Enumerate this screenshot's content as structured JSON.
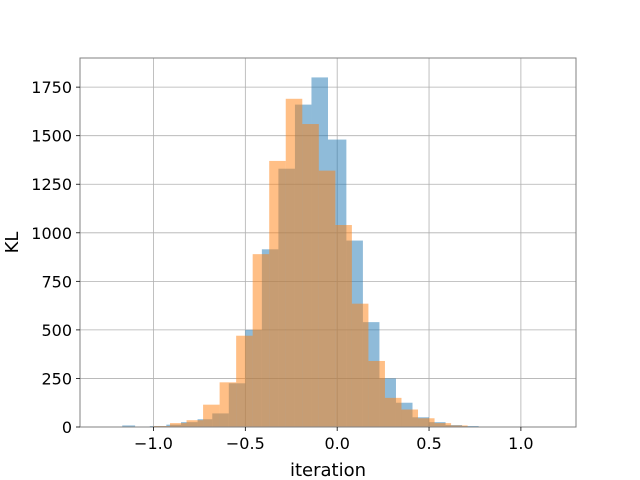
{
  "chart_data": {
    "type": "bar",
    "title": "",
    "xlabel": "iteration",
    "ylabel": "KL",
    "xlim": [
      -1.4,
      1.3
    ],
    "ylim": [
      0,
      1900
    ],
    "grid": true,
    "legend": "none",
    "xticks": [
      -1.0,
      -0.5,
      0.0,
      0.5,
      1.0
    ],
    "xtick_labels": [
      "−1.0",
      "−0.5",
      "0.0",
      "0.5",
      "1.0"
    ],
    "yticks": [
      0,
      250,
      500,
      750,
      1000,
      1250,
      1500,
      1750
    ],
    "ytick_labels": [
      "0",
      "250",
      "500",
      "750",
      "1000",
      "1250",
      "1500",
      "1750"
    ],
    "series": [
      {
        "color": "#1f77b4",
        "opacity": 0.5,
        "bins": [
          {
            "x0": -1.17,
            "x1": -1.1,
            "value": 8
          },
          {
            "x0": -1.1,
            "x1": -1.02,
            "value": 2
          },
          {
            "x0": -1.02,
            "x1": -0.93,
            "value": 5
          },
          {
            "x0": -0.93,
            "x1": -0.85,
            "value": 12
          },
          {
            "x0": -0.85,
            "x1": -0.76,
            "value": 25
          },
          {
            "x0": -0.76,
            "x1": -0.68,
            "value": 40
          },
          {
            "x0": -0.68,
            "x1": -0.59,
            "value": 70
          },
          {
            "x0": -0.59,
            "x1": -0.5,
            "value": 225
          },
          {
            "x0": -0.5,
            "x1": -0.41,
            "value": 500
          },
          {
            "x0": -0.41,
            "x1": -0.32,
            "value": 915
          },
          {
            "x0": -0.32,
            "x1": -0.23,
            "value": 1330
          },
          {
            "x0": -0.23,
            "x1": -0.14,
            "value": 1660
          },
          {
            "x0": -0.14,
            "x1": -0.05,
            "value": 1800
          },
          {
            "x0": -0.05,
            "x1": 0.05,
            "value": 1480
          },
          {
            "x0": 0.05,
            "x1": 0.14,
            "value": 960
          },
          {
            "x0": 0.14,
            "x1": 0.23,
            "value": 540
          },
          {
            "x0": 0.23,
            "x1": 0.32,
            "value": 250
          },
          {
            "x0": 0.32,
            "x1": 0.41,
            "value": 125
          },
          {
            "x0": 0.41,
            "x1": 0.5,
            "value": 50
          },
          {
            "x0": 0.5,
            "x1": 0.59,
            "value": 25
          },
          {
            "x0": 0.59,
            "x1": 0.68,
            "value": 10
          },
          {
            "x0": 0.68,
            "x1": 0.77,
            "value": 5
          },
          {
            "x0": 0.77,
            "x1": 0.86,
            "value": 2
          },
          {
            "x0": 1.1,
            "x1": 1.17,
            "value": 1
          }
        ]
      },
      {
        "color": "#ff7f0e",
        "opacity": 0.5,
        "bins": [
          {
            "x0": -1.0,
            "x1": -0.91,
            "value": 5
          },
          {
            "x0": -0.91,
            "x1": -0.82,
            "value": 20
          },
          {
            "x0": -0.82,
            "x1": -0.73,
            "value": 35
          },
          {
            "x0": -0.73,
            "x1": -0.64,
            "value": 115
          },
          {
            "x0": -0.64,
            "x1": -0.55,
            "value": 230
          },
          {
            "x0": -0.55,
            "x1": -0.46,
            "value": 470
          },
          {
            "x0": -0.46,
            "x1": -0.37,
            "value": 890
          },
          {
            "x0": -0.37,
            "x1": -0.28,
            "value": 1370
          },
          {
            "x0": -0.28,
            "x1": -0.19,
            "value": 1690
          },
          {
            "x0": -0.19,
            "x1": -0.1,
            "value": 1560
          },
          {
            "x0": -0.1,
            "x1": -0.01,
            "value": 1320
          },
          {
            "x0": -0.01,
            "x1": 0.08,
            "value": 1040
          },
          {
            "x0": 0.08,
            "x1": 0.17,
            "value": 635
          },
          {
            "x0": 0.17,
            "x1": 0.26,
            "value": 340
          },
          {
            "x0": 0.26,
            "x1": 0.35,
            "value": 150
          },
          {
            "x0": 0.35,
            "x1": 0.44,
            "value": 90
          },
          {
            "x0": 0.44,
            "x1": 0.53,
            "value": 45
          },
          {
            "x0": 0.53,
            "x1": 0.62,
            "value": 20
          },
          {
            "x0": 0.62,
            "x1": 0.71,
            "value": 8
          }
        ]
      }
    ]
  }
}
